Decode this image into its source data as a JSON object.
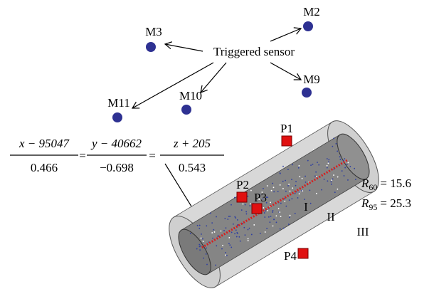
{
  "sensors": [
    {
      "label": "M2"
    },
    {
      "label": "M3"
    },
    {
      "label": "M9"
    },
    {
      "label": "M11"
    },
    {
      "label": "M10"
    }
  ],
  "triggered_label": "Triggered sensor",
  "equation": {
    "fractions": [
      {
        "numerator": "x − 95047",
        "denominator": "0.466"
      },
      {
        "numerator": "y − 40662",
        "denominator": "−0.698"
      },
      {
        "numerator": "z + 205",
        "denominator": "0.543"
      }
    ],
    "equals": [
      "=",
      "="
    ]
  },
  "points": [
    {
      "label": "P1"
    },
    {
      "label": "P2"
    },
    {
      "label": "P3"
    },
    {
      "label": "P4"
    }
  ],
  "regions": [
    "I",
    "II",
    "III"
  ],
  "radii": [
    {
      "symbol": "R",
      "subscript": "60",
      "value": "= 15.6"
    },
    {
      "symbol": "R",
      "subscript": "95",
      "value": "= 25.3"
    }
  ]
}
